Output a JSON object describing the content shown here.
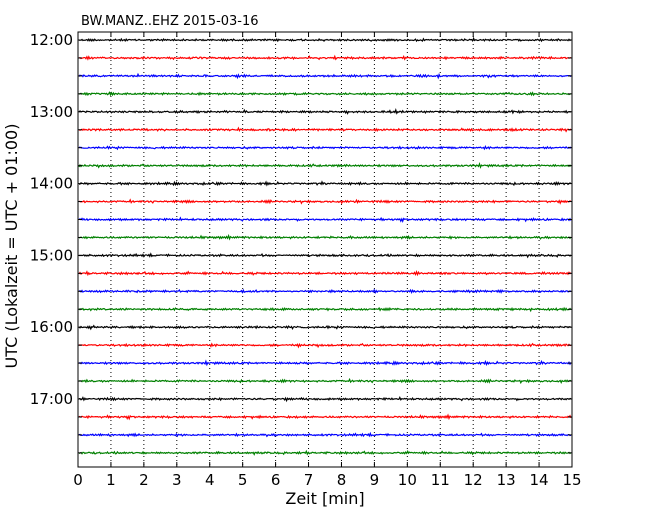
{
  "chart_data": {
    "type": "line",
    "title": "BW.MANZ..EHZ 2015-03-16",
    "xlabel": "Zeit  [min]",
    "ylabel": "UTC (Lokalzeit = UTC + 01:00)",
    "xlim": [
      0,
      15
    ],
    "x_ticks": [
      "0",
      "1",
      "2",
      "3",
      "4",
      "5",
      "6",
      "7",
      "8",
      "9",
      "10",
      "11",
      "12",
      "13",
      "14",
      "15"
    ],
    "y_tick_labels": [
      "12:00",
      "13:00",
      "14:00",
      "15:00",
      "16:00",
      "17:00"
    ],
    "traces_per_hour": 4,
    "minutes_per_trace": 15,
    "trace_colors": [
      "#000000",
      "#ff0000",
      "#0000ff",
      "#008000"
    ],
    "traces": [
      {
        "start": "12:00",
        "color": "#000000"
      },
      {
        "start": "12:15",
        "color": "#ff0000"
      },
      {
        "start": "12:30",
        "color": "#0000ff"
      },
      {
        "start": "12:45",
        "color": "#008000"
      },
      {
        "start": "13:00",
        "color": "#000000"
      },
      {
        "start": "13:15",
        "color": "#ff0000"
      },
      {
        "start": "13:30",
        "color": "#0000ff"
      },
      {
        "start": "13:45",
        "color": "#008000"
      },
      {
        "start": "14:00",
        "color": "#000000"
      },
      {
        "start": "14:15",
        "color": "#ff0000"
      },
      {
        "start": "14:30",
        "color": "#0000ff"
      },
      {
        "start": "14:45",
        "color": "#008000"
      },
      {
        "start": "15:00",
        "color": "#000000"
      },
      {
        "start": "15:15",
        "color": "#ff0000"
      },
      {
        "start": "15:30",
        "color": "#0000ff"
      },
      {
        "start": "15:45",
        "color": "#008000"
      },
      {
        "start": "16:00",
        "color": "#000000"
      },
      {
        "start": "16:15",
        "color": "#ff0000"
      },
      {
        "start": "16:30",
        "color": "#0000ff"
      },
      {
        "start": "16:45",
        "color": "#008000"
      },
      {
        "start": "17:00",
        "color": "#000000"
      },
      {
        "start": "17:15",
        "color": "#ff0000"
      },
      {
        "start": "17:30",
        "color": "#0000ff"
      },
      {
        "start": "17:45",
        "color": "#008000"
      }
    ],
    "grid": "vertical-dotted",
    "legend": "none"
  }
}
